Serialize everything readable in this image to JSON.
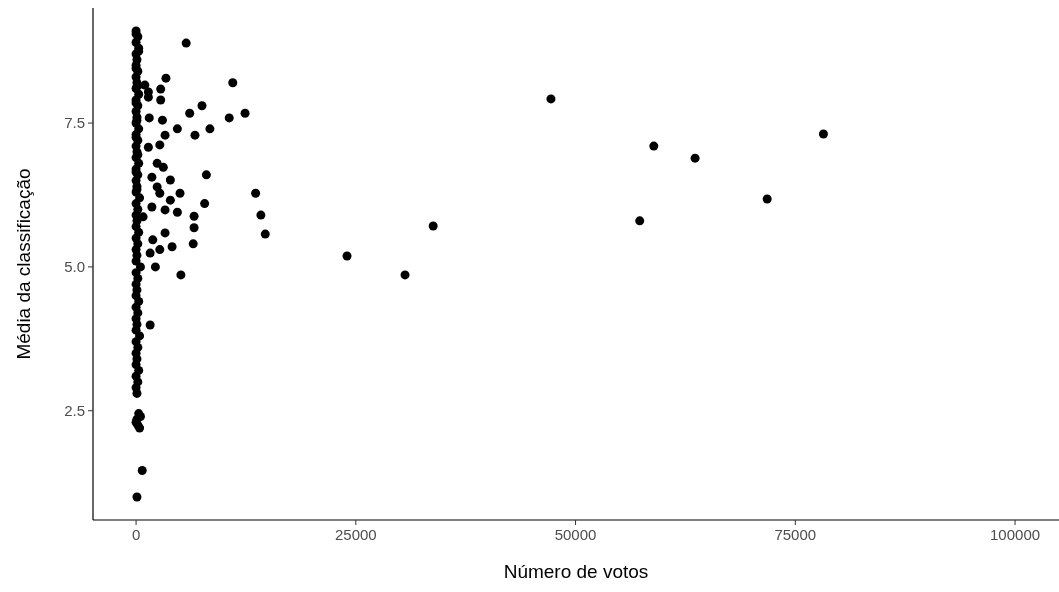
{
  "chart_data": {
    "type": "scatter",
    "xlabel": "Número de votos",
    "ylabel": "Média da classificação",
    "xlim": [
      -4900,
      105000
    ],
    "ylim": [
      0.6,
      9.5
    ],
    "xticks": [
      0,
      25000,
      50000,
      75000,
      100000
    ],
    "yticks": [
      2.5,
      {
        "value": 5,
        "label": "5.0"
      },
      7.5
    ],
    "grid": false,
    "marker": "circle",
    "series": [
      {
        "color": "#000000",
        "x": [
          0,
          200,
          0,
          300,
          0,
          100,
          0,
          200,
          0,
          100,
          0,
          300,
          0,
          200,
          0,
          100,
          0,
          300,
          0,
          200,
          0,
          100,
          0,
          300,
          0,
          200,
          0,
          100,
          0,
          400,
          0,
          200,
          0,
          100,
          0,
          300,
          0,
          200,
          0,
          100,
          0,
          500,
          0,
          200,
          0,
          100,
          0,
          300,
          0,
          200,
          0,
          100,
          0,
          400,
          0,
          200,
          0,
          100,
          0,
          300,
          0,
          200,
          0,
          100,
          0,
          300,
          0,
          200,
          0,
          100,
          0,
          200,
          0,
          100,
          300,
          500,
          0,
          200,
          400,
          100,
          700,
          100
        ],
        "values": [
          9.1,
          9.0,
          8.9,
          8.8,
          8.7,
          8.6,
          8.5,
          8.4,
          8.3,
          8.2,
          8.1,
          8.0,
          7.9,
          7.8,
          7.7,
          7.6,
          7.5,
          7.4,
          7.3,
          7.2,
          7.1,
          7.0,
          6.9,
          6.8,
          6.7,
          6.6,
          6.5,
          6.4,
          6.3,
          6.2,
          6.1,
          6.0,
          5.9,
          5.8,
          5.7,
          5.6,
          5.5,
          5.4,
          5.3,
          5.2,
          5.1,
          5.0,
          4.9,
          4.8,
          4.7,
          4.6,
          4.5,
          4.4,
          4.3,
          4.2,
          4.1,
          4.0,
          3.9,
          3.8,
          3.7,
          3.6,
          3.5,
          3.4,
          3.3,
          3.2,
          3.1,
          3.0,
          2.9,
          2.8,
          9.05,
          8.75,
          8.45,
          8.15,
          7.85,
          7.55,
          7.25,
          6.95,
          6.65,
          6.35,
          2.45,
          2.4,
          2.3,
          2.25,
          2.2,
          2.35,
          1.46,
          1.0
        ]
      },
      {
        "color": "#000000",
        "x": [
          5700,
          11000,
          12400,
          10600,
          8400,
          47200,
          78200,
          58900,
          63600,
          71800,
          57300,
          13600,
          14200,
          14700,
          33800,
          24000,
          30600,
          5100,
          8000,
          7800,
          6600,
          6500,
          6600,
          3400,
          6100,
          7500,
          6700,
          4700,
          2800,
          2800,
          2200,
          3300,
          4700,
          3900,
          5000,
          3300,
          3000,
          3300,
          2700,
          1500,
          1400,
          2400,
          3100,
          3900,
          2400,
          1800,
          2700,
          1800,
          4100,
          2700,
          1900,
          1600,
          800,
          1400,
          1000,
          1400,
          1600
        ],
        "values": [
          8.89,
          8.2,
          7.67,
          7.59,
          7.4,
          7.92,
          7.31,
          7.1,
          6.89,
          6.18,
          5.8,
          6.28,
          5.9,
          5.57,
          5.71,
          5.19,
          4.86,
          4.86,
          6.6,
          6.1,
          5.88,
          5.4,
          5.68,
          8.28,
          7.67,
          7.8,
          7.29,
          7.4,
          8.09,
          7.9,
          5.0,
          5.59,
          5.95,
          6.16,
          6.28,
          5.99,
          7.55,
          7.29,
          7.12,
          7.59,
          7.08,
          6.8,
          6.73,
          6.51,
          6.39,
          6.56,
          6.28,
          6.04,
          5.35,
          5.3,
          5.47,
          5.24,
          5.87,
          8.04,
          8.16,
          7.95,
          3.99
        ]
      }
    ]
  }
}
